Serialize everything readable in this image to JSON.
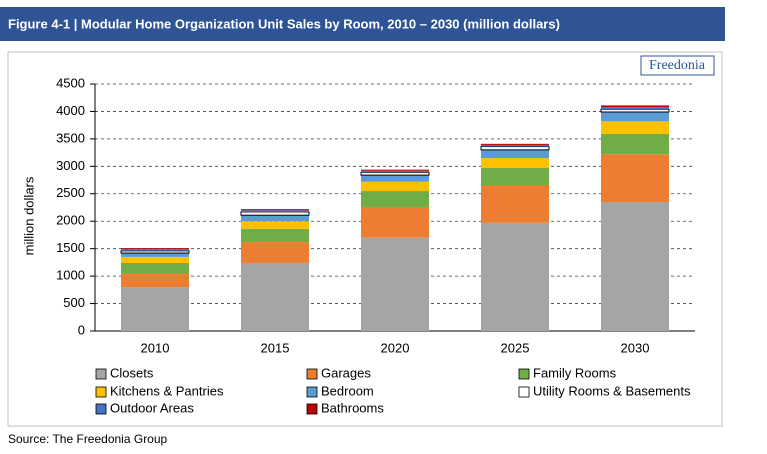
{
  "chart_data": {
    "type": "stacked-bar",
    "title": "Figure 4-1 | Modular Home Organization Unit Sales by Room, 2010 – 2030 (million dollars)",
    "ylabel": "million dollars",
    "categories": [
      "2010",
      "2015",
      "2020",
      "2025",
      "2030"
    ],
    "series": [
      {
        "name": "Closets",
        "color": "#a5a5a5",
        "values": [
          800,
          1240,
          1700,
          1970,
          2350
        ]
      },
      {
        "name": "Garages",
        "color": "#ed7d31",
        "values": [
          240,
          380,
          560,
          690,
          870
        ]
      },
      {
        "name": "Family Rooms",
        "color": "#70ad47",
        "values": [
          200,
          240,
          290,
          310,
          370
        ]
      },
      {
        "name": "Kitchens & Pantries",
        "color": "#ffc000",
        "values": [
          110,
          140,
          170,
          180,
          230
        ]
      },
      {
        "name": "Bedroom",
        "color": "#5b9bd5",
        "values": [
          70,
          110,
          120,
          150,
          170
        ]
      },
      {
        "name": "Utility Rooms & Basements",
        "color": "#ffffff",
        "values": [
          40,
          60,
          50,
          60,
          50
        ]
      },
      {
        "name": "Outdoor Areas",
        "color": "#4472c4",
        "values": [
          30,
          30,
          30,
          30,
          40
        ]
      },
      {
        "name": "Bathrooms",
        "color": "#c00000",
        "values": [
          20,
          20,
          20,
          20,
          30
        ]
      }
    ],
    "ylim": [
      0,
      4500
    ],
    "yticks": [
      0,
      500,
      1000,
      1500,
      2000,
      2500,
      3000,
      3500,
      4000,
      4500
    ],
    "grid": true
  },
  "logo": "Freedonia",
  "source": "Source: The Freedonia Group"
}
